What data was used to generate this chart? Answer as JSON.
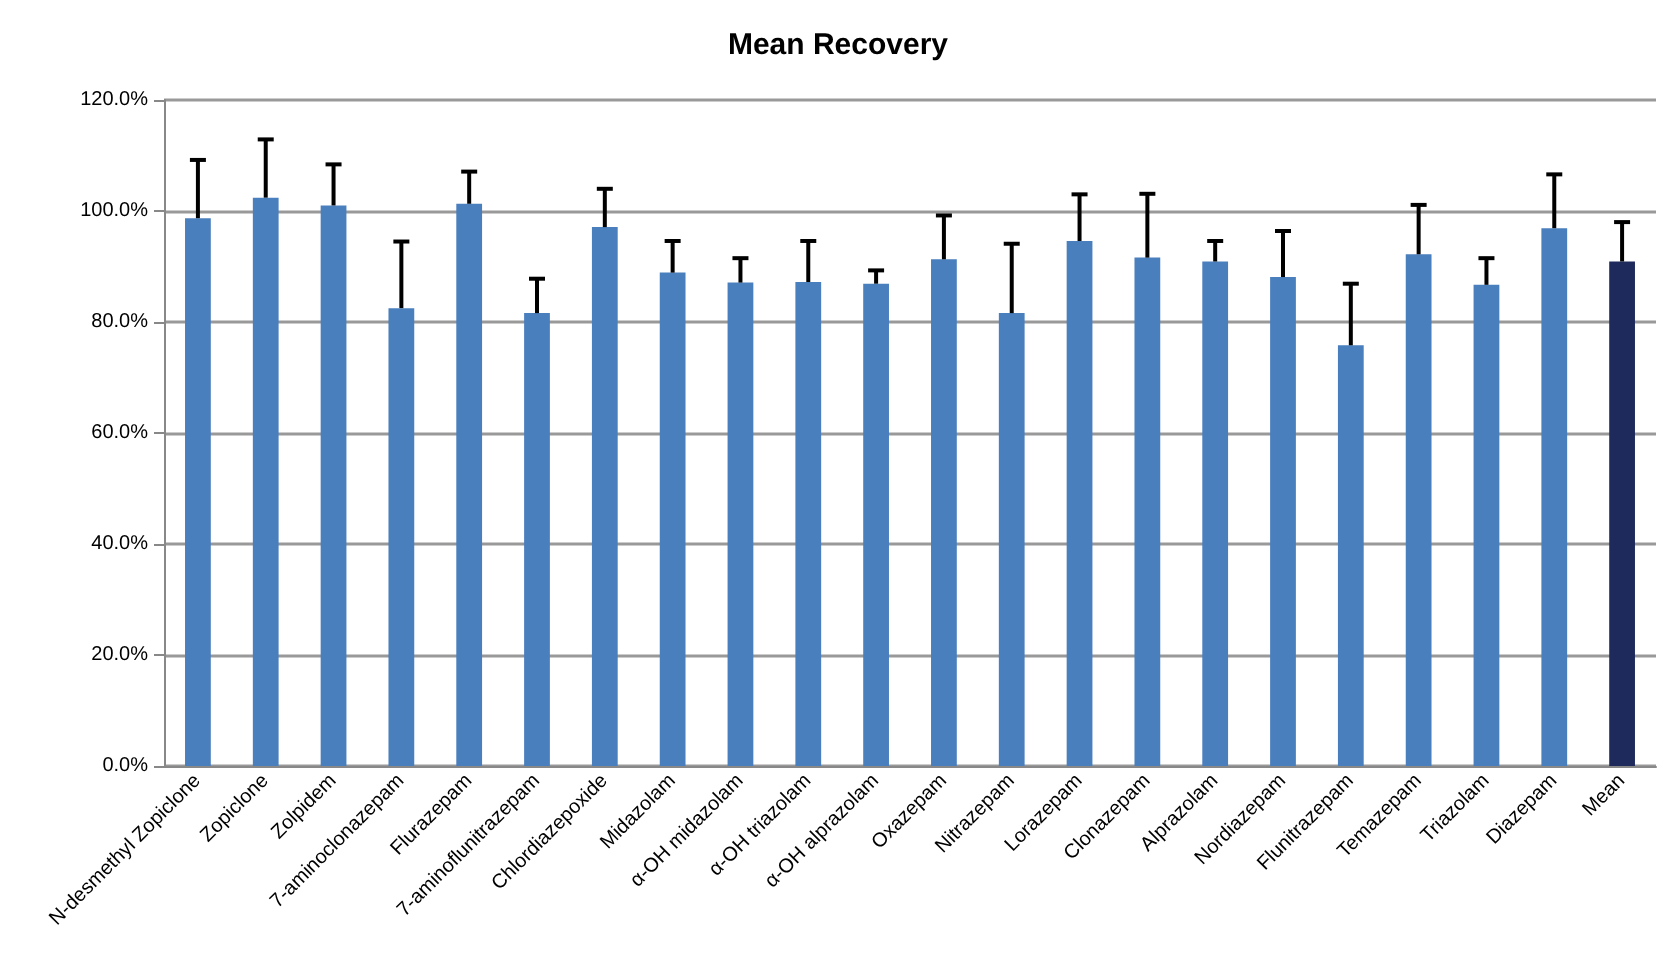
{
  "chart_data": {
    "type": "bar",
    "title": "Mean Recovery",
    "categories": [
      "N-desmethyl Zopiclone",
      "Zopiclone",
      "Zolpidem",
      "7-aminoclonazepam",
      "Flurazepam",
      "7-aminoflunitrazepam",
      "Chlordiazepoxide",
      "Midazolam",
      "α-OH midazolam",
      "α-OH triazolam",
      "α-OH alprazolam",
      "Oxazepam",
      "Nitrazepam",
      "Lorazepam",
      "Clonazepam",
      "Alprazolam",
      "Nordiazepam",
      "Flunitrazepam",
      "Temazepam",
      "Triazolam",
      "Diazepam",
      "Mean"
    ],
    "values": [
      98.7,
      102.4,
      101.0,
      82.5,
      101.3,
      81.6,
      97.1,
      88.9,
      87.1,
      87.2,
      86.9,
      91.3,
      81.6,
      94.6,
      91.6,
      90.9,
      88.1,
      75.8,
      92.2,
      86.7,
      96.9,
      90.9
    ],
    "errors": [
      [
        98.7,
        109.2
      ],
      [
        102.4,
        112.9
      ],
      [
        101.0,
        108.4
      ],
      [
        82.5,
        94.5
      ],
      [
        101.3,
        107.1
      ],
      [
        81.6,
        87.8
      ],
      [
        97.1,
        104.0
      ],
      [
        88.9,
        94.6
      ],
      [
        87.1,
        91.5
      ],
      [
        87.2,
        94.6
      ],
      [
        86.9,
        89.3
      ],
      [
        91.3,
        99.2
      ],
      [
        81.6,
        94.1
      ],
      [
        94.6,
        103.0
      ],
      [
        91.6,
        103.1
      ],
      [
        90.9,
        94.6
      ],
      [
        88.1,
        96.4
      ],
      [
        75.8,
        86.9
      ],
      [
        92.2,
        101.1
      ],
      [
        86.7,
        91.5
      ],
      [
        96.9,
        106.6
      ],
      [
        90.9,
        98.0
      ]
    ],
    "colors": [
      "#4a7fbe",
      "#4a7fbe",
      "#4a7fbe",
      "#4a7fbe",
      "#4a7fbe",
      "#4a7fbe",
      "#4a7fbe",
      "#4a7fbe",
      "#4a7fbe",
      "#4a7fbe",
      "#4a7fbe",
      "#4a7fbe",
      "#4a7fbe",
      "#4a7fbe",
      "#4a7fbe",
      "#4a7fbe",
      "#4a7fbe",
      "#4a7fbe",
      "#4a7fbe",
      "#4a7fbe",
      "#4a7fbe",
      "#1f2a5c"
    ],
    "ylim": [
      0,
      120
    ],
    "yticks": [
      {
        "value": 0,
        "label": "0.0%"
      },
      {
        "value": 20,
        "label": "20.0%"
      },
      {
        "value": 40,
        "label": "40.0%"
      },
      {
        "value": 60,
        "label": "60.0%"
      },
      {
        "value": 80,
        "label": "80.0%"
      },
      {
        "value": 100,
        "label": "100.0%"
      },
      {
        "value": 120,
        "label": "120.0%"
      }
    ],
    "grid": "y"
  }
}
